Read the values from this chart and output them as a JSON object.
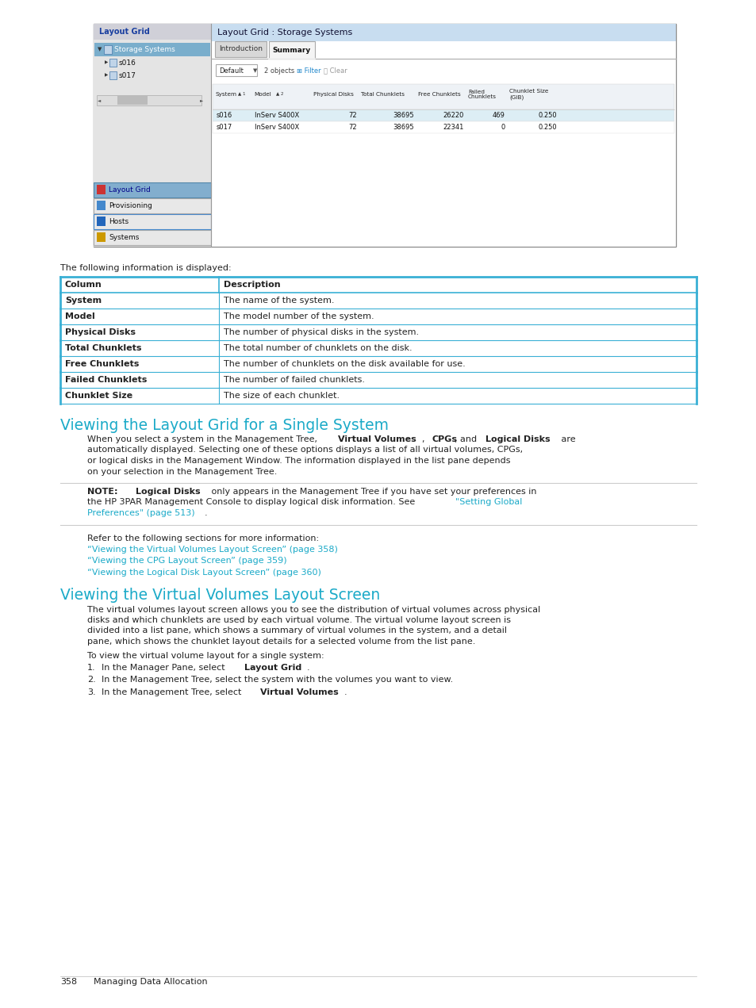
{
  "page_bg": "#ffffff",
  "page_number": "358",
  "page_footer": "Managing Data Allocation",
  "text_color": "#222222",
  "cyan_color": "#1baac8",
  "link_color": "#1baac8",
  "font_size": 8.0,
  "title_font_size": 13.5,
  "table": {
    "rows": [
      [
        "System",
        "The name of the system."
      ],
      [
        "Model",
        "The model number of the system."
      ],
      [
        "Physical Disks",
        "The number of physical disks in the system."
      ],
      [
        "Total Chunklets",
        "The total number of chunklets on the disk."
      ],
      [
        "Free Chunklets",
        "The number of chunklets on the disk available for use."
      ],
      [
        "Failed Chunklets",
        "The number of failed chunklets."
      ],
      [
        "Chunklet Size",
        "The size of each chunklet."
      ]
    ]
  },
  "screenshot_rows": [
    [
      "s016",
      "InServ S400X",
      "72",
      "38695",
      "26220",
      "469",
      "0.250"
    ],
    [
      "s017",
      "InServ S400X",
      "72",
      "38695",
      "22341",
      "0",
      "0.250"
    ]
  ]
}
